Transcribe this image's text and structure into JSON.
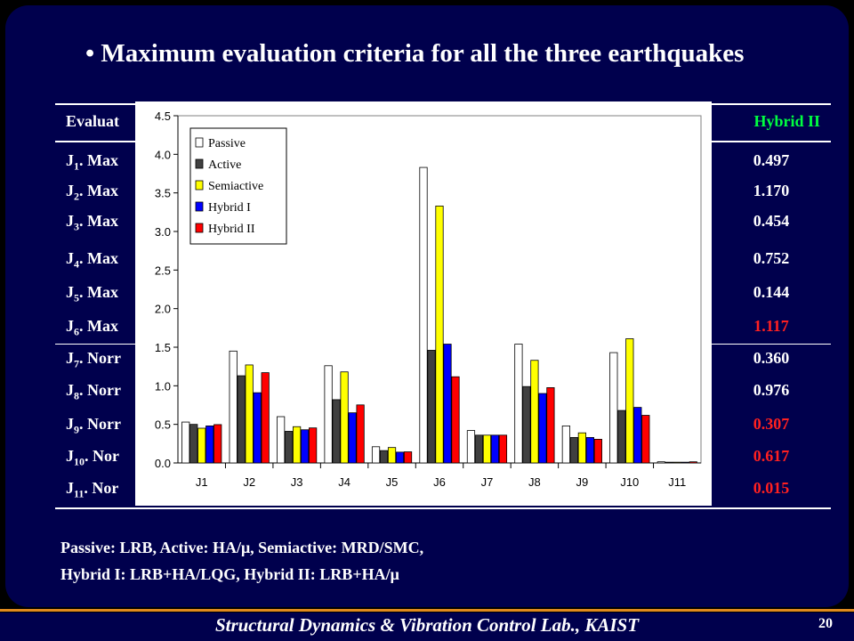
{
  "title": "• Maximum evaluation criteria for all the three earthquakes",
  "table": {
    "header_left": "Evaluat",
    "header_right": "Hybrid II",
    "rows": [
      {
        "prefix": "J",
        "sub": "1",
        "text": ". Max",
        "value": "0.497",
        "color": "#ffffff"
      },
      {
        "prefix": "J",
        "sub": "2",
        "text": ". Max",
        "value": "1.170",
        "color": "#ffffff"
      },
      {
        "prefix": "J",
        "sub": "3",
        "text": ". Max",
        "value": "0.454",
        "color": "#ffffff"
      },
      {
        "prefix": "J",
        "sub": "4",
        "text": ". Max",
        "value": "0.752",
        "color": "#ffffff"
      },
      {
        "prefix": "J",
        "sub": "5",
        "text": ". Max",
        "value": "0.144",
        "color": "#ffffff"
      },
      {
        "prefix": "J",
        "sub": "6",
        "text": ". Max",
        "value": "1.117",
        "color": "#ff2020"
      },
      {
        "prefix": "J",
        "sub": "7",
        "text": ". Norr",
        "value": "0.360",
        "color": "#ffffff"
      },
      {
        "prefix": "J",
        "sub": "8",
        "text": ". Norr",
        "value": "0.976",
        "color": "#ffffff"
      },
      {
        "prefix": "J",
        "sub": "9",
        "text": ". Norr",
        "value": "0.307",
        "color": "#ff2020"
      },
      {
        "prefix": "J",
        "sub": "10",
        "text": ". Nor",
        "value": "0.617",
        "color": "#ff2020"
      },
      {
        "prefix": "J",
        "sub": "11",
        "text": ". Nor",
        "value": "0.015",
        "color": "#ff2020"
      }
    ]
  },
  "chart_data": {
    "type": "bar",
    "categories": [
      "J1",
      "J2",
      "J3",
      "J4",
      "J5",
      "J6",
      "J7",
      "J8",
      "J9",
      "J10",
      "J11"
    ],
    "ylim": [
      0,
      4.5
    ],
    "yticks": [
      "0.0",
      "0.5",
      "1.0",
      "1.5",
      "2.0",
      "2.5",
      "3.0",
      "3.5",
      "4.0",
      "4.5"
    ],
    "legend_position": "top-left",
    "series": [
      {
        "name": "Passive",
        "color": "#ffffff",
        "values": [
          0.53,
          1.45,
          0.6,
          1.26,
          0.21,
          3.83,
          0.42,
          1.54,
          0.48,
          1.43,
          0.015
        ]
      },
      {
        "name": "Active",
        "color": "#404040",
        "values": [
          0.5,
          1.13,
          0.41,
          0.82,
          0.16,
          1.46,
          0.36,
          0.99,
          0.33,
          0.68,
          0.01
        ]
      },
      {
        "name": "Semiactive",
        "color": "#ffff00",
        "values": [
          0.45,
          1.27,
          0.47,
          1.18,
          0.2,
          3.33,
          0.36,
          1.33,
          0.39,
          1.61,
          0.01
        ]
      },
      {
        "name": "Hybrid I",
        "color": "#0000ff",
        "values": [
          0.48,
          0.91,
          0.43,
          0.65,
          0.14,
          1.54,
          0.36,
          0.9,
          0.33,
          0.72,
          0.01
        ]
      },
      {
        "name": "Hybrid II",
        "color": "#ff0000",
        "values": [
          0.497,
          1.17,
          0.454,
          0.752,
          0.144,
          1.117,
          0.36,
          0.976,
          0.307,
          0.617,
          0.015
        ]
      }
    ]
  },
  "notes": {
    "line1": "Passive: LRB, Active: HA/μ, Semiactive: MRD/SMC,",
    "line2": "Hybrid I: LRB+HA/LQG, Hybrid II: LRB+HA/μ"
  },
  "footer": {
    "text": "Structural Dynamics & Vibration Control Lab., KAIST",
    "page": "20"
  }
}
